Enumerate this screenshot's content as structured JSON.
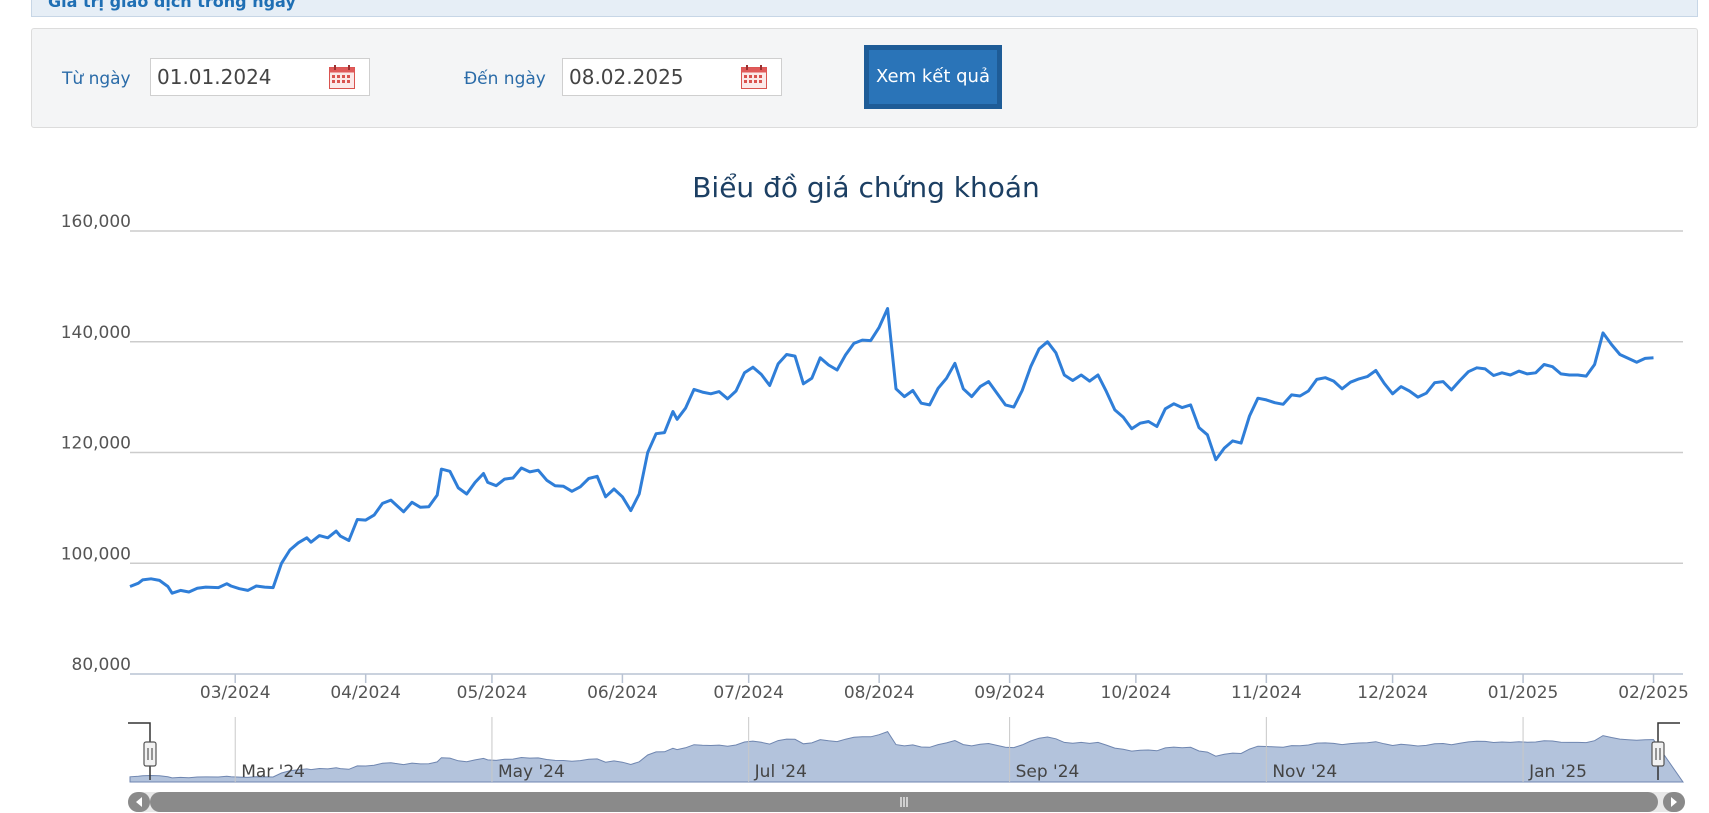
{
  "header": {
    "strip_label": "Giá trị giao dịch trong ngày"
  },
  "filters": {
    "from_label": "Từ ngày",
    "from_value": "01.01.2024",
    "to_label": "Đến ngày",
    "to_value": "08.02.2025",
    "submit_label": "Xem kết quả"
  },
  "colors": {
    "line": "#2f7ed8",
    "navigator_fill": "#b3c3dc",
    "navigator_line": "#6f86b0",
    "accent": "#2a74b8"
  },
  "chart_data": {
    "type": "line",
    "title": "Biểu đồ giá chứng khoán",
    "ylim": [
      80000,
      160000
    ],
    "y_ticks": [
      "80,000",
      "100,000",
      "120,000",
      "140,000",
      "160,000"
    ],
    "y_tick_values": [
      80000,
      100000,
      120000,
      140000,
      160000
    ],
    "x_ticks": [
      {
        "label": "03/2024",
        "date": "2024-03-01"
      },
      {
        "label": "04/2024",
        "date": "2024-04-01"
      },
      {
        "label": "05/2024",
        "date": "2024-05-01"
      },
      {
        "label": "06/2024",
        "date": "2024-06-01"
      },
      {
        "label": "07/2024",
        "date": "2024-07-01"
      },
      {
        "label": "08/2024",
        "date": "2024-08-01"
      },
      {
        "label": "09/2024",
        "date": "2024-09-01"
      },
      {
        "label": "10/2024",
        "date": "2024-10-01"
      },
      {
        "label": "11/2024",
        "date": "2024-11-01"
      },
      {
        "label": "12/2024",
        "date": "2024-12-01"
      },
      {
        "label": "01/2025",
        "date": "2025-01-01"
      },
      {
        "label": "02/2025",
        "date": "2025-02-01"
      }
    ],
    "grid": true,
    "legend": "none",
    "x_range": [
      "2024-02-05",
      "2025-02-08"
    ],
    "series": [
      {
        "points": [
          [
            "2024-02-05",
            95800
          ],
          [
            "2024-02-07",
            96400
          ],
          [
            "2024-02-08",
            97000
          ],
          [
            "2024-02-10",
            97200
          ],
          [
            "2024-02-12",
            96900
          ],
          [
            "2024-02-14",
            95800
          ],
          [
            "2024-02-15",
            94600
          ],
          [
            "2024-02-17",
            95100
          ],
          [
            "2024-02-19",
            94800
          ],
          [
            "2024-02-21",
            95500
          ],
          [
            "2024-02-23",
            95700
          ],
          [
            "2024-02-26",
            95600
          ],
          [
            "2024-02-28",
            96300
          ],
          [
            "2024-02-29",
            95900
          ],
          [
            "2024-03-02",
            95400
          ],
          [
            "2024-03-04",
            95100
          ],
          [
            "2024-03-06",
            95900
          ],
          [
            "2024-03-08",
            95700
          ],
          [
            "2024-03-10",
            95600
          ],
          [
            "2024-03-12",
            100000
          ],
          [
            "2024-03-14",
            102400
          ],
          [
            "2024-03-16",
            103700
          ],
          [
            "2024-03-18",
            104600
          ],
          [
            "2024-03-19",
            103800
          ],
          [
            "2024-03-21",
            105000
          ],
          [
            "2024-03-23",
            104600
          ],
          [
            "2024-03-25",
            105800
          ],
          [
            "2024-03-26",
            104900
          ],
          [
            "2024-03-28",
            104100
          ],
          [
            "2024-03-30",
            107900
          ],
          [
            "2024-04-01",
            107800
          ],
          [
            "2024-04-03",
            108700
          ],
          [
            "2024-04-05",
            110800
          ],
          [
            "2024-04-07",
            111400
          ],
          [
            "2024-04-08",
            110700
          ],
          [
            "2024-04-10",
            109300
          ],
          [
            "2024-04-12",
            111000
          ],
          [
            "2024-04-14",
            110100
          ],
          [
            "2024-04-16",
            110200
          ],
          [
            "2024-04-18",
            112300
          ],
          [
            "2024-04-19",
            117000
          ],
          [
            "2024-04-21",
            116600
          ],
          [
            "2024-04-23",
            113600
          ],
          [
            "2024-04-25",
            112500
          ],
          [
            "2024-04-27",
            114600
          ],
          [
            "2024-04-29",
            116200
          ],
          [
            "2024-04-30",
            114600
          ],
          [
            "2024-05-02",
            114000
          ],
          [
            "2024-05-04",
            115200
          ],
          [
            "2024-05-06",
            115400
          ],
          [
            "2024-05-08",
            117200
          ],
          [
            "2024-05-10",
            116500
          ],
          [
            "2024-05-12",
            116800
          ],
          [
            "2024-05-14",
            115000
          ],
          [
            "2024-05-16",
            114000
          ],
          [
            "2024-05-18",
            113900
          ],
          [
            "2024-05-20",
            113000
          ],
          [
            "2024-05-22",
            113800
          ],
          [
            "2024-05-24",
            115300
          ],
          [
            "2024-05-26",
            115700
          ],
          [
            "2024-05-28",
            112000
          ],
          [
            "2024-05-30",
            113400
          ],
          [
            "2024-06-01",
            112000
          ],
          [
            "2024-06-03",
            109500
          ],
          [
            "2024-06-05",
            112500
          ],
          [
            "2024-06-07",
            120000
          ],
          [
            "2024-06-09",
            123400
          ],
          [
            "2024-06-11",
            123600
          ],
          [
            "2024-06-13",
            127400
          ],
          [
            "2024-06-14",
            126000
          ],
          [
            "2024-06-16",
            128000
          ],
          [
            "2024-06-18",
            131400
          ],
          [
            "2024-06-20",
            130900
          ],
          [
            "2024-06-22",
            130600
          ],
          [
            "2024-06-24",
            131000
          ],
          [
            "2024-06-26",
            129700
          ],
          [
            "2024-06-28",
            131100
          ],
          [
            "2024-06-30",
            134400
          ],
          [
            "2024-07-02",
            135400
          ],
          [
            "2024-07-04",
            134100
          ],
          [
            "2024-07-06",
            132100
          ],
          [
            "2024-07-08",
            136000
          ],
          [
            "2024-07-10",
            137700
          ],
          [
            "2024-07-12",
            137400
          ],
          [
            "2024-07-14",
            132400
          ],
          [
            "2024-07-16",
            133400
          ],
          [
            "2024-07-18",
            137100
          ],
          [
            "2024-07-20",
            135800
          ],
          [
            "2024-07-22",
            134900
          ],
          [
            "2024-07-24",
            137600
          ],
          [
            "2024-07-26",
            139700
          ],
          [
            "2024-07-28",
            140300
          ],
          [
            "2024-07-30",
            140200
          ],
          [
            "2024-08-01",
            142600
          ],
          [
            "2024-08-03",
            146000
          ],
          [
            "2024-08-05",
            131500
          ],
          [
            "2024-08-07",
            130100
          ],
          [
            "2024-08-09",
            131200
          ],
          [
            "2024-08-11",
            128900
          ],
          [
            "2024-08-13",
            128600
          ],
          [
            "2024-08-15",
            131600
          ],
          [
            "2024-08-17",
            133400
          ],
          [
            "2024-08-19",
            136100
          ],
          [
            "2024-08-21",
            131500
          ],
          [
            "2024-08-23",
            130100
          ],
          [
            "2024-08-25",
            131900
          ],
          [
            "2024-08-27",
            132800
          ],
          [
            "2024-08-29",
            130700
          ],
          [
            "2024-08-31",
            128600
          ],
          [
            "2024-09-02",
            128200
          ],
          [
            "2024-09-04",
            131200
          ],
          [
            "2024-09-06",
            135500
          ],
          [
            "2024-09-08",
            138700
          ],
          [
            "2024-09-10",
            140000
          ],
          [
            "2024-09-12",
            138000
          ],
          [
            "2024-09-14",
            134000
          ],
          [
            "2024-09-16",
            133000
          ],
          [
            "2024-09-18",
            134000
          ],
          [
            "2024-09-20",
            132900
          ],
          [
            "2024-09-22",
            134000
          ],
          [
            "2024-09-24",
            131000
          ],
          [
            "2024-09-26",
            127700
          ],
          [
            "2024-09-28",
            126400
          ],
          [
            "2024-09-30",
            124300
          ],
          [
            "2024-10-02",
            125300
          ],
          [
            "2024-10-04",
            125600
          ],
          [
            "2024-10-06",
            124700
          ],
          [
            "2024-10-08",
            127900
          ],
          [
            "2024-10-10",
            128800
          ],
          [
            "2024-10-12",
            128100
          ],
          [
            "2024-10-14",
            128600
          ],
          [
            "2024-10-16",
            124500
          ],
          [
            "2024-10-18",
            123200
          ],
          [
            "2024-10-20",
            118700
          ],
          [
            "2024-10-22",
            120800
          ],
          [
            "2024-10-24",
            122100
          ],
          [
            "2024-10-26",
            121700
          ],
          [
            "2024-10-28",
            126600
          ],
          [
            "2024-10-30",
            129800
          ],
          [
            "2024-11-01",
            129500
          ],
          [
            "2024-11-03",
            129000
          ],
          [
            "2024-11-05",
            128700
          ],
          [
            "2024-11-07",
            130400
          ],
          [
            "2024-11-09",
            130200
          ],
          [
            "2024-11-11",
            131100
          ],
          [
            "2024-11-13",
            133200
          ],
          [
            "2024-11-15",
            133500
          ],
          [
            "2024-11-17",
            132900
          ],
          [
            "2024-11-19",
            131500
          ],
          [
            "2024-11-21",
            132700
          ],
          [
            "2024-11-23",
            133300
          ],
          [
            "2024-11-25",
            133700
          ],
          [
            "2024-11-27",
            134800
          ],
          [
            "2024-11-29",
            132500
          ],
          [
            "2024-12-01",
            130600
          ],
          [
            "2024-12-03",
            131900
          ],
          [
            "2024-12-05",
            131100
          ],
          [
            "2024-12-07",
            130000
          ],
          [
            "2024-12-09",
            130700
          ],
          [
            "2024-12-11",
            132600
          ],
          [
            "2024-12-13",
            132800
          ],
          [
            "2024-12-15",
            131300
          ],
          [
            "2024-12-17",
            133000
          ],
          [
            "2024-12-19",
            134600
          ],
          [
            "2024-12-21",
            135300
          ],
          [
            "2024-12-23",
            135100
          ],
          [
            "2024-12-25",
            133900
          ],
          [
            "2024-12-27",
            134400
          ],
          [
            "2024-12-29",
            134000
          ],
          [
            "2024-12-31",
            134700
          ],
          [
            "2025-01-02",
            134200
          ],
          [
            "2025-01-04",
            134400
          ],
          [
            "2025-01-06",
            135900
          ],
          [
            "2025-01-08",
            135500
          ],
          [
            "2025-01-10",
            134200
          ],
          [
            "2025-01-12",
            134000
          ],
          [
            "2025-01-14",
            134000
          ],
          [
            "2025-01-16",
            133800
          ],
          [
            "2025-01-18",
            135900
          ],
          [
            "2025-01-20",
            141600
          ],
          [
            "2025-01-22",
            139500
          ],
          [
            "2025-01-24",
            137700
          ],
          [
            "2025-01-26",
            137000
          ],
          [
            "2025-01-28",
            136300
          ],
          [
            "2025-01-30",
            137000
          ],
          [
            "2025-02-01",
            137100
          ]
        ]
      }
    ],
    "navigator_labels": [
      "Mar '24",
      "May '24",
      "Jul '24",
      "Sep '24",
      "Nov '24",
      "Jan '25"
    ]
  }
}
